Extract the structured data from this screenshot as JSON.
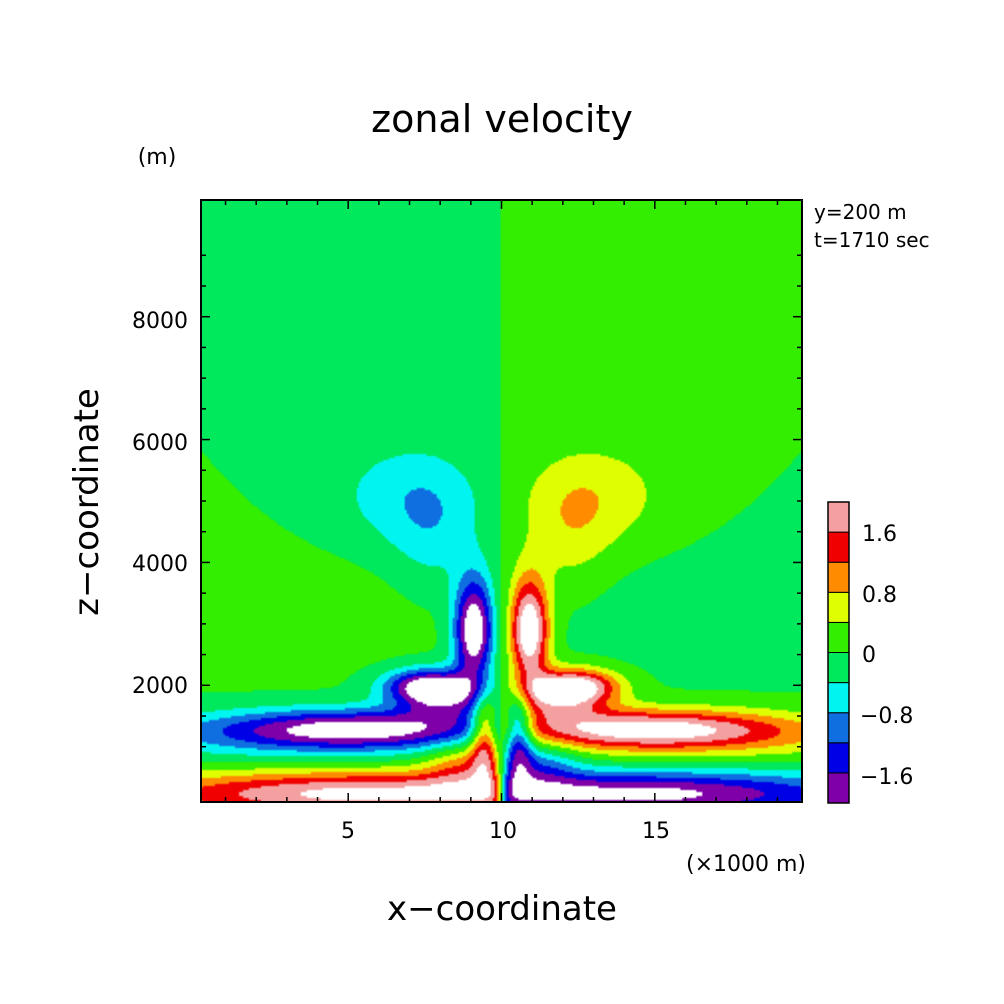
{
  "chart_data": {
    "type": "heatmap",
    "title": "zonal velocity",
    "xlabel": "x−coordinate",
    "ylabel": "z−coordinate",
    "x_unit": "(×1000 m)",
    "y_unit": "(m)",
    "annotations": [
      "y=200 m",
      "t=1710 sec"
    ],
    "xlim": [
      0.2,
      19.8
    ],
    "ylim": [
      100,
      9900
    ],
    "x_ticks": [
      5,
      10,
      15
    ],
    "x_tick_labels": [
      "5",
      "10",
      "15"
    ],
    "y_ticks": [
      2000,
      4000,
      6000,
      8000
    ],
    "y_tick_labels": [
      "2000",
      "4000",
      "6000",
      "8000"
    ],
    "colorbar": {
      "levels": [
        -2.0,
        -1.6,
        -1.2,
        -0.8,
        -0.4,
        0.0,
        0.4,
        0.8,
        1.2,
        1.6,
        2.0
      ],
      "colors": [
        "#7f00a8",
        "#0000e6",
        "#0f6fe0",
        "#00f5f0",
        "#00e85c",
        "#33ee00",
        "#dfff00",
        "#ff8c00",
        "#f00000",
        "#f5a0a0"
      ],
      "tick_labels": [
        "−1.6",
        "−0.8",
        "0",
        "0.8",
        "1.6"
      ],
      "tick_values": [
        -1.6,
        -0.8,
        0.0,
        0.8,
        1.6
      ]
    },
    "features": [
      {
        "name": "upper-left negative lobe",
        "x": 7.0,
        "z": 5000,
        "value": -0.6
      },
      {
        "name": "upper-right positive lobe",
        "x": 13.3,
        "z": 5000,
        "value": 0.6
      },
      {
        "name": "left inner core",
        "x": 9.3,
        "z": 2900,
        "value": -2.2
      },
      {
        "name": "right inner core",
        "x": 10.8,
        "z": 2900,
        "value": 2.2
      },
      {
        "name": "left outflow",
        "x": 5.5,
        "z": 1300,
        "value": -1.8
      },
      {
        "name": "right outflow",
        "x": 14.5,
        "z": 1300,
        "value": 1.8
      },
      {
        "name": "left surface inflow",
        "x": 4.0,
        "z": 250,
        "value": 2.0
      },
      {
        "name": "right surface inflow",
        "x": 16.0,
        "z": 250,
        "value": -2.0
      }
    ]
  }
}
